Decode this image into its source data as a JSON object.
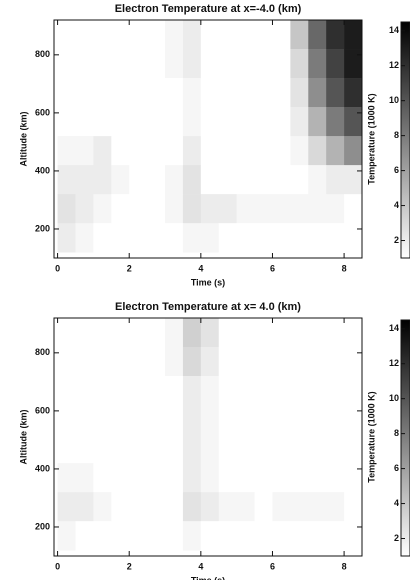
{
  "chart_data": [
    {
      "type": "heatmap",
      "title": "Electron Temperature at x=-4.0 (km)",
      "xlabel": "Time (s)",
      "ylabel": "Altitude (km)",
      "colorbar_label": "Temperature (1000 K)",
      "x": [
        0.25,
        0.75,
        1.25,
        1.75,
        2.25,
        2.75,
        3.25,
        3.75,
        4.25,
        4.75,
        5.25,
        5.75,
        6.25,
        6.75,
        7.25,
        7.75,
        8.25
      ],
      "y": [
        870,
        770,
        670,
        570,
        470,
        370,
        270,
        170
      ],
      "z": [
        [
          1,
          1,
          1,
          1,
          1,
          1,
          1.5,
          2,
          1,
          1,
          1,
          1,
          1,
          4,
          9,
          12,
          13
        ],
        [
          1,
          1,
          1,
          1,
          1,
          1,
          1.5,
          2,
          1,
          1,
          1,
          1,
          1,
          3,
          8,
          11,
          13
        ],
        [
          1,
          1,
          1,
          1,
          1,
          1,
          1,
          1.5,
          1,
          1,
          1,
          1,
          1,
          2.5,
          7,
          10,
          12
        ],
        [
          1,
          1,
          1,
          1,
          1,
          1,
          1,
          1.5,
          1,
          1,
          1,
          1,
          1,
          2,
          5,
          8,
          10
        ],
        [
          1.5,
          1.5,
          2,
          1,
          1,
          1,
          1,
          2,
          1,
          1,
          1,
          1,
          1,
          1.5,
          3,
          5,
          7
        ],
        [
          2,
          2,
          2,
          1.5,
          1,
          1,
          1.5,
          2.5,
          1,
          1,
          1,
          1,
          1,
          1,
          1.5,
          2,
          2
        ],
        [
          2.5,
          2,
          1.5,
          1,
          1,
          1,
          1.5,
          2.5,
          2,
          2,
          1.5,
          1.5,
          1.5,
          1.5,
          1.5,
          1.5,
          1
        ],
        [
          2,
          1.5,
          1,
          1,
          1,
          1,
          1,
          1.5,
          1.5,
          1,
          1,
          1,
          1,
          1,
          1,
          1,
          1
        ]
      ],
      "xlim": [
        -0.1,
        8.5
      ],
      "xticks": [
        0,
        2,
        4,
        6,
        8
      ],
      "ylim": [
        100,
        920
      ],
      "yticks": [
        200,
        400,
        600,
        800
      ],
      "clim": [
        1,
        14.5
      ],
      "cticks": [
        2,
        4,
        6,
        8,
        10,
        12,
        14
      ],
      "colormap": [
        "#ffffff",
        "#000000"
      ]
    },
    {
      "type": "heatmap",
      "title": "Electron Temperature at x= 4.0 (km)",
      "xlabel": "Time (s)",
      "ylabel": "Altitude (km)",
      "colorbar_label": "Temperature (1000 K)",
      "x": [
        0.25,
        0.75,
        1.25,
        1.75,
        2.25,
        2.75,
        3.25,
        3.75,
        4.25,
        4.75,
        5.25,
        5.75,
        6.25,
        6.75,
        7.25,
        7.75,
        8.25
      ],
      "y": [
        870,
        770,
        670,
        570,
        470,
        370,
        270,
        170
      ],
      "z": [
        [
          1,
          1,
          1,
          1,
          1,
          1,
          1.5,
          3.5,
          2.5,
          1,
          1,
          1,
          1,
          1,
          1,
          1,
          1
        ],
        [
          1,
          1,
          1,
          1,
          1,
          1,
          1.5,
          3,
          2,
          1,
          1,
          1,
          1,
          1,
          1,
          1,
          1
        ],
        [
          1,
          1,
          1,
          1,
          1,
          1,
          1,
          2,
          1.5,
          1,
          1,
          1,
          1,
          1,
          1,
          1,
          1
        ],
        [
          1,
          1,
          1,
          1,
          1,
          1,
          1,
          2,
          1.5,
          1,
          1,
          1,
          1,
          1,
          1,
          1,
          1
        ],
        [
          1,
          1,
          1,
          1,
          1,
          1,
          1,
          2,
          1.5,
          1,
          1,
          1,
          1,
          1,
          1,
          1,
          1
        ],
        [
          1.5,
          1.5,
          1,
          1,
          1,
          1,
          1,
          2,
          1.5,
          1,
          1,
          1,
          1,
          1,
          1,
          1,
          1
        ],
        [
          2,
          2,
          1.5,
          1,
          1,
          1,
          1,
          2.5,
          2,
          1.5,
          1.5,
          1,
          1.5,
          1.5,
          1.5,
          1.5,
          1
        ],
        [
          1.5,
          1,
          1,
          1,
          1,
          1,
          1,
          1.5,
          1,
          1,
          1,
          1,
          1,
          1,
          1,
          1,
          1
        ]
      ],
      "xlim": [
        -0.1,
        8.5
      ],
      "xticks": [
        0,
        2,
        4,
        6,
        8
      ],
      "ylim": [
        100,
        920
      ],
      "yticks": [
        200,
        400,
        600,
        800
      ],
      "clim": [
        1,
        14.5
      ],
      "cticks": [
        2,
        4,
        6,
        8,
        10,
        12,
        14
      ],
      "colormap": [
        "#ffffff",
        "#000000"
      ]
    }
  ]
}
